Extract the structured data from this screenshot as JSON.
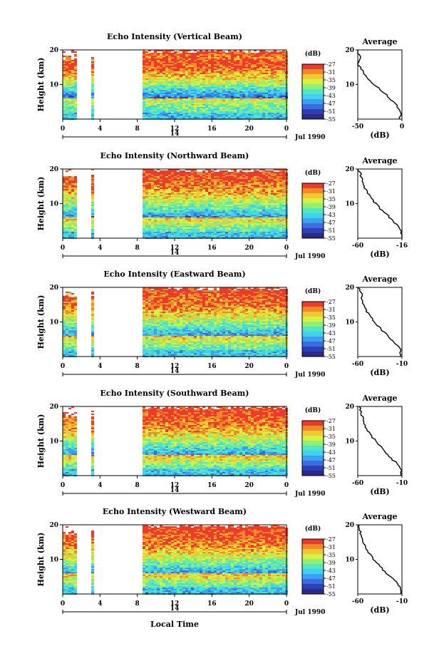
{
  "figure": {
    "panels": [
      {
        "title": "Echo Intensity (Vertical Beam)",
        "avg_x_ticks": [
          "-50",
          "0"
        ]
      },
      {
        "title": "Echo Intensity (Northward Beam)",
        "avg_x_ticks": [
          "-60",
          "-16"
        ]
      },
      {
        "title": "Echo Intensity (Eastward Beam)",
        "avg_x_ticks": [
          "-60",
          "-10"
        ]
      },
      {
        "title": "Echo Intensity (Southward Beam)",
        "avg_x_ticks": [
          "-60",
          "-10"
        ]
      },
      {
        "title": "Echo Intensity (Westward Beam)",
        "avg_x_ticks": [
          "-60",
          "-10"
        ]
      }
    ],
    "ylabel": "Height (km)",
    "y_ticks": [
      "20",
      "10"
    ],
    "x_ticks": [
      "0",
      "4",
      "8",
      "12",
      "16",
      "20",
      "0"
    ],
    "day_label": "14",
    "date_label": "Jul 1990",
    "colorbar": {
      "unit": "(dB)",
      "ticks": [
        "-27",
        "-31",
        "-35",
        "-39",
        "-43",
        "-47",
        "-51",
        "-55"
      ],
      "colors": [
        "#2a2a8a",
        "#2f3fb5",
        "#3a6ee0",
        "#3aa0f0",
        "#40d0f0",
        "#50e8c0",
        "#90f070",
        "#d8f040",
        "#f0c830",
        "#f08a28",
        "#ee3a2a"
      ]
    },
    "avg_title": "Average",
    "avg_xlabel": "(dB)",
    "avg_y_ticks": [
      "20",
      "10"
    ],
    "xlabel": "Local Time"
  },
  "chart_data": [
    {
      "type": "heatmap",
      "title": "Echo Intensity (Vertical Beam)",
      "xlabel": "",
      "ylabel": "Height (km)",
      "xlim": [
        0,
        24
      ],
      "ylim": [
        0,
        20
      ],
      "zlim": [
        -55,
        -27
      ],
      "z_unit": "dB",
      "data_gaps_hours": [
        [
          1.5,
          3.0
        ],
        [
          3.3,
          8.5
        ]
      ],
      "average_profile": {
        "height_km": [
          2,
          4,
          6,
          8,
          10,
          12,
          14,
          16,
          18,
          20
        ],
        "dB": [
          -2,
          -6,
          -14,
          -22,
          -32,
          -40,
          -45,
          -50,
          -47,
          -52
        ],
        "xlim": [
          -50,
          0
        ]
      }
    },
    {
      "type": "heatmap",
      "title": "Echo Intensity (Northward Beam)",
      "xlabel": "",
      "ylabel": "Height (km)",
      "xlim": [
        0,
        24
      ],
      "ylim": [
        0,
        20
      ],
      "zlim": [
        -55,
        -27
      ],
      "z_unit": "dB",
      "data_gaps_hours": [
        [
          1.5,
          3.0
        ],
        [
          3.3,
          8.5
        ]
      ],
      "average_profile": {
        "height_km": [
          2,
          4,
          6,
          8,
          10,
          12,
          14,
          16,
          18,
          20
        ],
        "dB": [
          -16,
          -22,
          -28,
          -36,
          -42,
          -48,
          -52,
          -55,
          -57,
          -59
        ],
        "xlim": [
          -60,
          -16
        ]
      }
    },
    {
      "type": "heatmap",
      "title": "Echo Intensity (Eastward Beam)",
      "xlabel": "",
      "ylabel": "Height (km)",
      "xlim": [
        0,
        24
      ],
      "ylim": [
        0,
        20
      ],
      "zlim": [
        -55,
        -27
      ],
      "z_unit": "dB",
      "data_gaps_hours": [
        [
          1.5,
          3.0
        ],
        [
          3.3,
          8.5
        ]
      ],
      "average_profile": {
        "height_km": [
          2,
          4,
          6,
          8,
          10,
          12,
          14,
          16,
          18,
          20
        ],
        "dB": [
          -12,
          -18,
          -26,
          -34,
          -41,
          -47,
          -52,
          -55,
          -56,
          -59
        ],
        "xlim": [
          -60,
          -10
        ]
      }
    },
    {
      "type": "heatmap",
      "title": "Echo Intensity (Southward Beam)",
      "xlabel": "",
      "ylabel": "Height (km)",
      "xlim": [
        0,
        24
      ],
      "ylim": [
        0,
        20
      ],
      "zlim": [
        -55,
        -27
      ],
      "z_unit": "dB",
      "data_gaps_hours": [
        [
          1.5,
          3.0
        ],
        [
          3.3,
          8.5
        ]
      ],
      "average_profile": {
        "height_km": [
          2,
          4,
          6,
          8,
          10,
          12,
          14,
          16,
          18,
          20
        ],
        "dB": [
          -11,
          -18,
          -26,
          -33,
          -40,
          -46,
          -51,
          -54,
          -56,
          -58
        ],
        "xlim": [
          -60,
          -10
        ]
      }
    },
    {
      "type": "heatmap",
      "title": "Echo Intensity (Westward Beam)",
      "xlabel": "Local Time",
      "ylabel": "Height (km)",
      "xlim": [
        0,
        24
      ],
      "ylim": [
        0,
        20
      ],
      "zlim": [
        -55,
        -27
      ],
      "z_unit": "dB",
      "data_gaps_hours": [
        [
          1.5,
          3.0
        ],
        [
          3.3,
          8.5
        ]
      ],
      "average_profile": {
        "height_km": [
          2,
          4,
          6,
          8,
          10,
          12,
          14,
          16,
          18,
          20
        ],
        "dB": [
          -12,
          -19,
          -27,
          -35,
          -42,
          -48,
          -52,
          -55,
          -57,
          -59
        ],
        "xlim": [
          -60,
          -10
        ]
      }
    }
  ]
}
